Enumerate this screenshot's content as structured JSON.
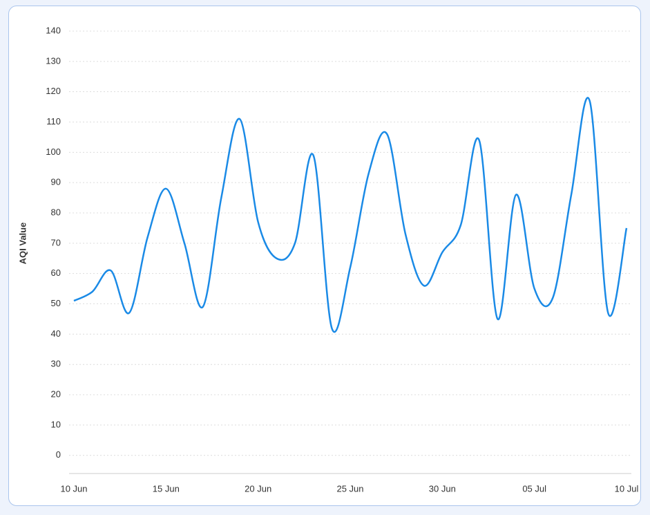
{
  "chart_data": {
    "type": "line",
    "y_label": "AQI Value",
    "categories": [
      "10 Jun",
      null,
      null,
      null,
      null,
      "15 Jun",
      null,
      null,
      null,
      null,
      "20 Jun",
      null,
      null,
      null,
      null,
      "25 Jun",
      null,
      null,
      null,
      null,
      "30 Jun",
      null,
      null,
      null,
      null,
      "05 Jul",
      null,
      null,
      null,
      null,
      "10 Jul"
    ],
    "series": [
      {
        "name": "AQI",
        "color": "#1a8ae6",
        "values": [
          51,
          54,
          61,
          47,
          72,
          88,
          70,
          49,
          85,
          111,
          77,
          65,
          70,
          99,
          42,
          62,
          93,
          106,
          73,
          56,
          67,
          76,
          104,
          45,
          86,
          55,
          52,
          86,
          117,
          47,
          75
        ]
      }
    ],
    "ylim": [
      -6,
      140
    ],
    "yticks": [
      0,
      10,
      20,
      30,
      40,
      50,
      60,
      70,
      80,
      90,
      100,
      110,
      120,
      130,
      140
    ],
    "grid": true
  }
}
